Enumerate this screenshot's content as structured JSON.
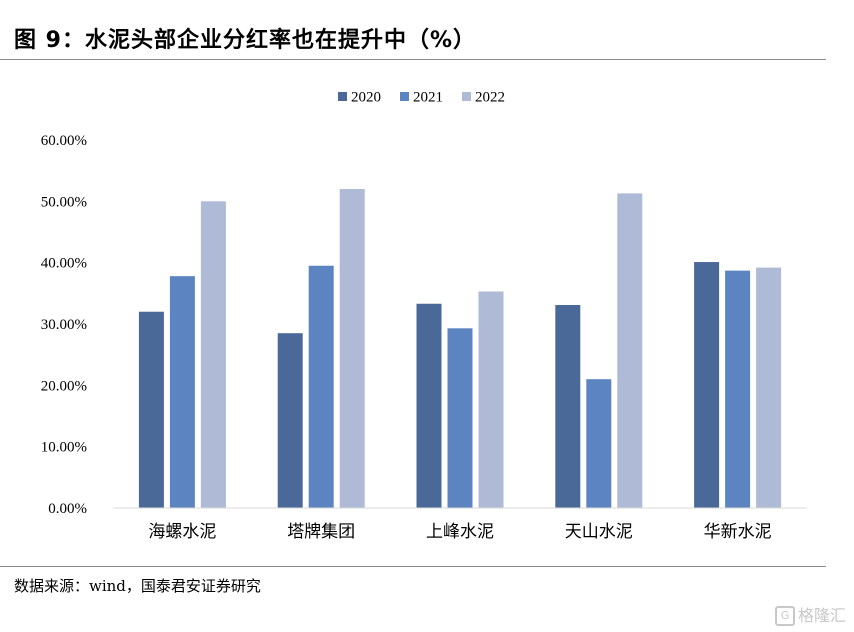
{
  "title": "图 9：水泥头部企业分红率也在提升中（%）",
  "source": "数据来源：wind，国泰君安证券研究",
  "watermark": {
    "icon": "G",
    "text": "格隆汇"
  },
  "chart_data": {
    "type": "bar",
    "categories": [
      "海螺水泥",
      "塔牌集团",
      "上峰水泥",
      "天山水泥",
      "华新水泥"
    ],
    "series": [
      {
        "name": "2020",
        "color": "#4a6898",
        "values": [
          32.0,
          28.5,
          33.3,
          33.1,
          40.1
        ]
      },
      {
        "name": "2021",
        "color": "#5b84c0",
        "values": [
          37.8,
          39.5,
          29.3,
          21.0,
          38.7
        ]
      },
      {
        "name": "2022",
        "color": "#aebad6",
        "values": [
          50.0,
          52.0,
          35.3,
          51.3,
          39.2
        ]
      }
    ],
    "yticks": [
      "0.00%",
      "10.00%",
      "20.00%",
      "30.00%",
      "40.00%",
      "50.00%",
      "60.00%"
    ],
    "ylim": [
      0,
      60
    ],
    "legend_position": "top-center",
    "grid": false
  }
}
